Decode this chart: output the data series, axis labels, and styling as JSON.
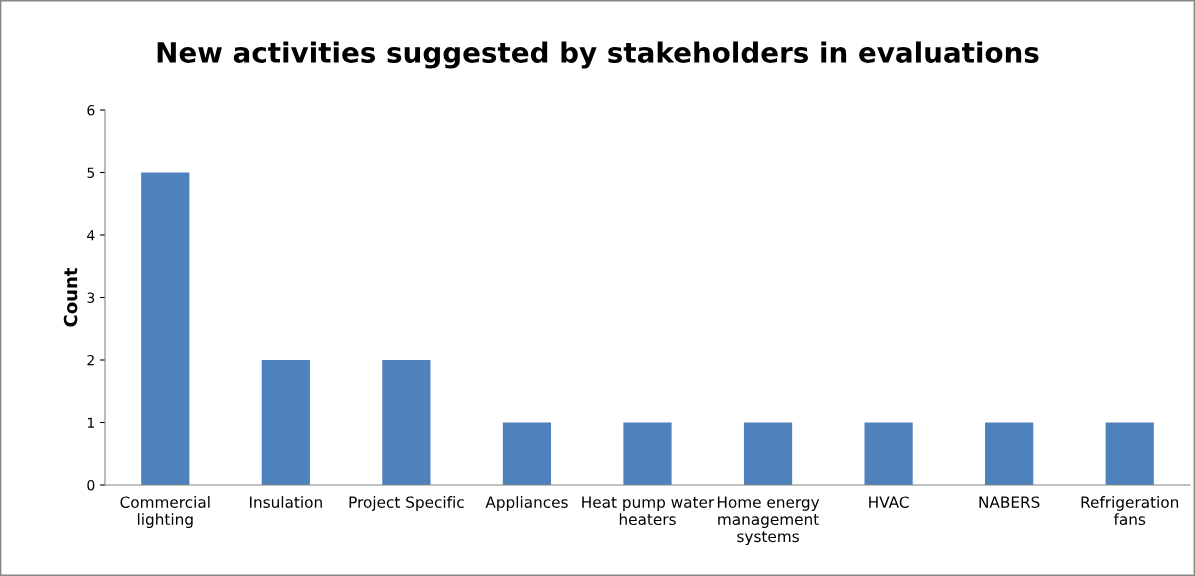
{
  "chart_data": {
    "type": "bar",
    "title": "New activities suggested by stakeholders in evaluations",
    "ylabel": "Count",
    "categories": [
      "Commercial lighting",
      "Insulation",
      "Project Specific",
      "Appliances",
      "Heat pump water heaters",
      "Home energy management systems",
      "HVAC",
      "NABERS",
      "Refrigeration fans"
    ],
    "values": [
      5,
      2,
      2,
      1,
      1,
      1,
      1,
      1,
      1
    ],
    "color": "#4f81bd",
    "ylim": [
      0,
      6
    ],
    "yticks": [
      0,
      1,
      2,
      3,
      4,
      5,
      6
    ],
    "grid": false,
    "legend": false
  }
}
